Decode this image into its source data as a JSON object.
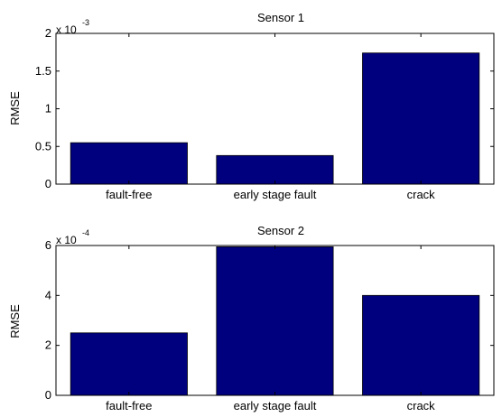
{
  "colors": {
    "bar": "#00007f",
    "axis": "#000000",
    "background": "#ffffff"
  },
  "chart_data": [
    {
      "type": "bar",
      "title": "Sensor 1",
      "ylabel": "RMSE",
      "exponent": {
        "base": "x 10",
        "power": "-3"
      },
      "categories": [
        "fault-free",
        "early stage fault",
        "crack"
      ],
      "values": [
        0.55,
        0.38,
        1.74
      ],
      "ylim": [
        0,
        2
      ],
      "yticks": [
        0,
        0.5,
        1,
        1.5,
        2
      ],
      "ytick_labels": [
        "0",
        "0.5",
        "1",
        "1.5",
        "2"
      ],
      "grid": false,
      "legend": "none"
    },
    {
      "type": "bar",
      "title": "Sensor 2",
      "ylabel": "RMSE",
      "exponent": {
        "base": "x 10",
        "power": "-4"
      },
      "categories": [
        "fault-free",
        "early stage fault",
        "crack"
      ],
      "values": [
        2.5,
        5.95,
        4.0
      ],
      "ylim": [
        0,
        6
      ],
      "yticks": [
        0,
        2,
        4,
        6
      ],
      "ytick_labels": [
        "0",
        "2",
        "4",
        "6"
      ],
      "grid": false,
      "legend": "none"
    }
  ]
}
